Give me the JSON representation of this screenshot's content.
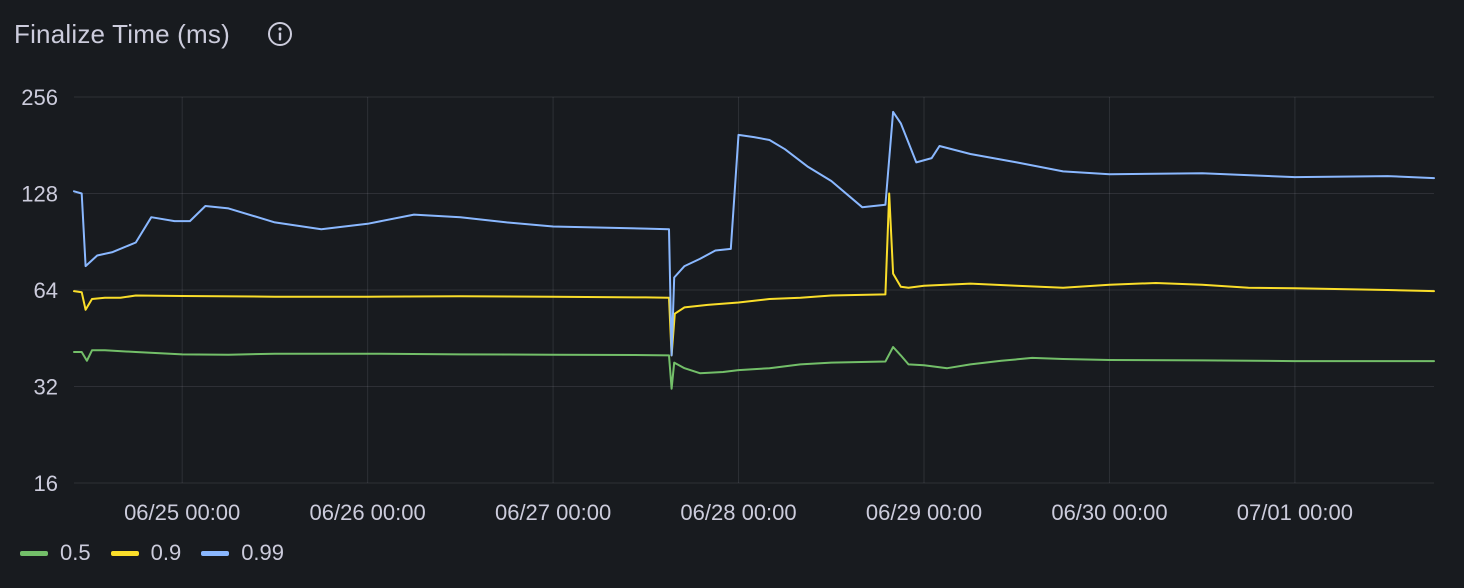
{
  "panel": {
    "title": "Finalize Time (ms)",
    "info_icon": "info-circle-icon"
  },
  "chart_data": {
    "type": "line",
    "title": "Finalize Time (ms)",
    "xlabel": "",
    "ylabel": "",
    "y_scale": "log2",
    "ylim": [
      16,
      256
    ],
    "y_ticks": [
      256,
      128,
      64,
      32,
      16
    ],
    "y_tick_labels": [
      "256",
      "128",
      "64",
      "32",
      "16"
    ],
    "xlim": [
      "2024-06-24 10:00",
      "2024-07-01 18:00"
    ],
    "x_ticks": [
      "2024-06-25 00:00",
      "2024-06-26 00:00",
      "2024-06-27 00:00",
      "2024-06-28 00:00",
      "2024-06-29 00:00",
      "2024-06-30 00:00",
      "2024-07-01 00:00"
    ],
    "x_tick_labels": [
      "06/25 00:00",
      "06/26 00:00",
      "06/27 00:00",
      "06/28 00:00",
      "06/29 00:00",
      "06/30 00:00",
      "07/01 00:00"
    ],
    "grid": true,
    "legend_position": "bottom-left",
    "series": [
      {
        "name": "0.5",
        "color": "#73bf69",
        "points": [
          [
            "2024-06-24 10:00",
            41
          ],
          [
            "2024-06-24 11:00",
            41
          ],
          [
            "2024-06-24 11:40",
            38.5
          ],
          [
            "2024-06-24 12:20",
            41.5
          ],
          [
            "2024-06-24 14:00",
            41.5
          ],
          [
            "2024-06-24 18:00",
            41
          ],
          [
            "2024-06-25 00:00",
            40.3
          ],
          [
            "2024-06-25 06:00",
            40.2
          ],
          [
            "2024-06-25 12:00",
            40.5
          ],
          [
            "2024-06-26 00:00",
            40.5
          ],
          [
            "2024-06-26 12:00",
            40.3
          ],
          [
            "2024-06-27 00:00",
            40.2
          ],
          [
            "2024-06-27 12:00",
            40.1
          ],
          [
            "2024-06-27 15:00",
            40
          ],
          [
            "2024-06-27 15:20",
            31.5
          ],
          [
            "2024-06-27 15:40",
            38
          ],
          [
            "2024-06-27 17:00",
            36.5
          ],
          [
            "2024-06-27 19:00",
            35.2
          ],
          [
            "2024-06-27 22:00",
            35.5
          ],
          [
            "2024-06-28 00:00",
            36
          ],
          [
            "2024-06-28 04:00",
            36.5
          ],
          [
            "2024-06-28 08:00",
            37.5
          ],
          [
            "2024-06-28 12:00",
            38
          ],
          [
            "2024-06-28 19:00",
            38.3
          ],
          [
            "2024-06-28 20:00",
            42.5
          ],
          [
            "2024-06-28 21:00",
            40
          ],
          [
            "2024-06-28 22:00",
            37.5
          ],
          [
            "2024-06-29 00:00",
            37.3
          ],
          [
            "2024-06-29 03:00",
            36.5
          ],
          [
            "2024-06-29 06:00",
            37.5
          ],
          [
            "2024-06-29 10:00",
            38.5
          ],
          [
            "2024-06-29 14:00",
            39.3
          ],
          [
            "2024-06-29 18:00",
            39
          ],
          [
            "2024-06-30 00:00",
            38.7
          ],
          [
            "2024-06-30 12:00",
            38.6
          ],
          [
            "2024-07-01 00:00",
            38.4
          ],
          [
            "2024-07-01 12:00",
            38.4
          ],
          [
            "2024-07-01 18:00",
            38.4
          ]
        ]
      },
      {
        "name": "0.9",
        "color": "#fade2a",
        "points": [
          [
            "2024-06-24 10:00",
            63.5
          ],
          [
            "2024-06-24 11:00",
            63
          ],
          [
            "2024-06-24 11:30",
            55.5
          ],
          [
            "2024-06-24 12:20",
            60
          ],
          [
            "2024-06-24 14:00",
            60.5
          ],
          [
            "2024-06-24 16:00",
            60.5
          ],
          [
            "2024-06-24 18:00",
            61.5
          ],
          [
            "2024-06-25 00:00",
            61.3
          ],
          [
            "2024-06-25 12:00",
            61
          ],
          [
            "2024-06-26 00:00",
            61
          ],
          [
            "2024-06-26 12:00",
            61.2
          ],
          [
            "2024-06-27 00:00",
            61
          ],
          [
            "2024-06-27 12:00",
            60.7
          ],
          [
            "2024-06-27 15:00",
            60.5
          ],
          [
            "2024-06-27 15:20",
            40
          ],
          [
            "2024-06-27 15:45",
            54
          ],
          [
            "2024-06-27 17:00",
            56.5
          ],
          [
            "2024-06-27 20:00",
            57.5
          ],
          [
            "2024-06-28 00:00",
            58.5
          ],
          [
            "2024-06-28 04:00",
            60
          ],
          [
            "2024-06-28 08:00",
            60.5
          ],
          [
            "2024-06-28 12:00",
            61.5
          ],
          [
            "2024-06-28 19:00",
            62
          ],
          [
            "2024-06-28 19:30",
            128
          ],
          [
            "2024-06-28 20:00",
            72
          ],
          [
            "2024-06-28 21:00",
            65.5
          ],
          [
            "2024-06-28 22:00",
            65
          ],
          [
            "2024-06-29 00:00",
            66
          ],
          [
            "2024-06-29 06:00",
            67
          ],
          [
            "2024-06-29 12:00",
            66
          ],
          [
            "2024-06-29 18:00",
            65
          ],
          [
            "2024-06-30 00:00",
            66.5
          ],
          [
            "2024-06-30 06:00",
            67.3
          ],
          [
            "2024-06-30 12:00",
            66.5
          ],
          [
            "2024-06-30 18:00",
            65
          ],
          [
            "2024-07-01 00:00",
            64.8
          ],
          [
            "2024-07-01 12:00",
            64
          ],
          [
            "2024-07-01 18:00",
            63.5
          ]
        ]
      },
      {
        "name": "0.99",
        "color": "#8ab8ff",
        "points": [
          [
            "2024-06-24 10:00",
            130
          ],
          [
            "2024-06-24 11:00",
            128
          ],
          [
            "2024-06-24 11:30",
            76
          ],
          [
            "2024-06-24 13:00",
            82
          ],
          [
            "2024-06-24 15:00",
            84
          ],
          [
            "2024-06-24 18:00",
            90
          ],
          [
            "2024-06-24 20:00",
            108
          ],
          [
            "2024-06-24 23:00",
            105
          ],
          [
            "2024-06-25 01:00",
            105
          ],
          [
            "2024-06-25 03:00",
            117
          ],
          [
            "2024-06-25 06:00",
            115
          ],
          [
            "2024-06-25 12:00",
            104
          ],
          [
            "2024-06-25 18:00",
            99
          ],
          [
            "2024-06-26 00:00",
            103
          ],
          [
            "2024-06-26 06:00",
            110
          ],
          [
            "2024-06-26 12:00",
            108
          ],
          [
            "2024-06-26 18:00",
            104
          ],
          [
            "2024-06-27 00:00",
            101
          ],
          [
            "2024-06-27 12:00",
            99.5
          ],
          [
            "2024-06-27 15:00",
            99
          ],
          [
            "2024-06-27 15:20",
            40
          ],
          [
            "2024-06-27 15:40",
            70
          ],
          [
            "2024-06-27 17:00",
            76
          ],
          [
            "2024-06-27 19:00",
            80
          ],
          [
            "2024-06-27 21:00",
            85
          ],
          [
            "2024-06-27 23:00",
            86
          ],
          [
            "2024-06-28 00:00",
            195
          ],
          [
            "2024-06-28 02:00",
            192
          ],
          [
            "2024-06-28 04:00",
            188
          ],
          [
            "2024-06-28 06:00",
            176
          ],
          [
            "2024-06-28 09:00",
            155
          ],
          [
            "2024-06-28 12:00",
            140
          ],
          [
            "2024-06-28 16:00",
            116
          ],
          [
            "2024-06-28 19:00",
            118
          ],
          [
            "2024-06-28 20:00",
            230
          ],
          [
            "2024-06-28 21:00",
            212
          ],
          [
            "2024-06-28 23:00",
            160
          ],
          [
            "2024-06-29 01:00",
            165
          ],
          [
            "2024-06-29 02:00",
            180
          ],
          [
            "2024-06-29 06:00",
            170
          ],
          [
            "2024-06-29 12:00",
            160
          ],
          [
            "2024-06-29 18:00",
            150
          ],
          [
            "2024-06-30 00:00",
            147
          ],
          [
            "2024-06-30 12:00",
            148
          ],
          [
            "2024-07-01 00:00",
            144
          ],
          [
            "2024-07-01 12:00",
            145
          ],
          [
            "2024-07-01 18:00",
            143
          ]
        ]
      }
    ]
  },
  "legend": [
    {
      "label": "0.5",
      "color": "#73bf69"
    },
    {
      "label": "0.9",
      "color": "#fade2a"
    },
    {
      "label": "0.99",
      "color": "#8ab8ff"
    }
  ]
}
